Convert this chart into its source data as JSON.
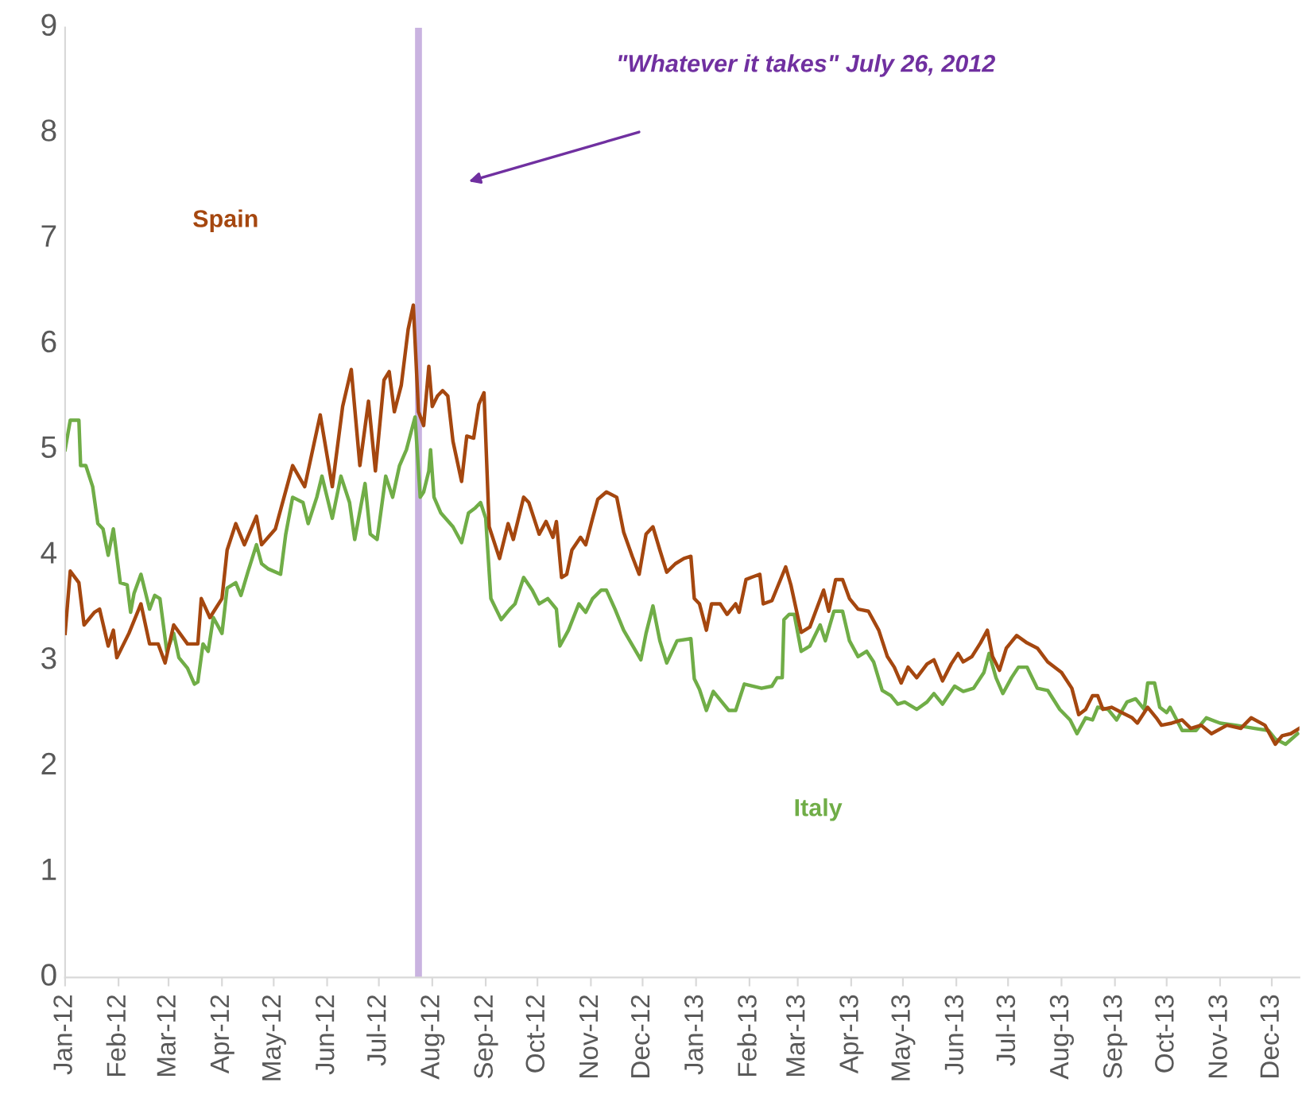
{
  "chart_data": {
    "type": "line",
    "series": [
      {
        "name": "Spain",
        "color": "#a5470f",
        "x": [
          "2012-01-01",
          "2012-01-04",
          "2012-01-09",
          "2012-01-12",
          "2012-01-18",
          "2012-01-21",
          "2012-01-26",
          "2012-01-29",
          "2012-01-31",
          "2012-02-07",
          "2012-02-14",
          "2012-02-19",
          "2012-02-24",
          "2012-02-28",
          "2012-03-04",
          "2012-03-12",
          "2012-03-18",
          "2012-03-20",
          "2012-03-25",
          "2012-04-01",
          "2012-04-04",
          "2012-04-09",
          "2012-04-14",
          "2012-04-21",
          "2012-04-24",
          "2012-05-02",
          "2012-05-07",
          "2012-05-12",
          "2012-05-19",
          "2012-05-28",
          "2012-06-04",
          "2012-06-10",
          "2012-06-15",
          "2012-06-20",
          "2012-06-25",
          "2012-06-29",
          "2012-07-04",
          "2012-07-07",
          "2012-07-10",
          "2012-07-14",
          "2012-07-18",
          "2012-07-21",
          "2012-07-24",
          "2012-07-27",
          "2012-07-30",
          "2012-08-01",
          "2012-08-04",
          "2012-08-07",
          "2012-08-10",
          "2012-08-13",
          "2012-08-18",
          "2012-08-21",
          "2012-08-25",
          "2012-08-28",
          "2012-08-31",
          "2012-09-03",
          "2012-09-09",
          "2012-09-14",
          "2012-09-17",
          "2012-09-23",
          "2012-09-26",
          "2012-09-29",
          "2012-10-02",
          "2012-10-06",
          "2012-10-10",
          "2012-10-12",
          "2012-10-15",
          "2012-10-18",
          "2012-10-21",
          "2012-10-26",
          "2012-10-29",
          "2012-11-02",
          "2012-11-05",
          "2012-11-10",
          "2012-11-16",
          "2012-11-20",
          "2012-11-25",
          "2012-11-29",
          "2012-12-03",
          "2012-12-07",
          "2012-12-11",
          "2012-12-15",
          "2012-12-20",
          "2012-12-25",
          "2012-12-29",
          "2012-12-31",
          "2013-01-03",
          "2013-01-07",
          "2013-01-10",
          "2013-01-15",
          "2013-01-19",
          "2013-01-24",
          "2013-01-26",
          "2013-01-30",
          "2013-02-02",
          "2013-02-07",
          "2013-02-09",
          "2013-02-14",
          "2013-02-22",
          "2013-02-25",
          "2013-03-03",
          "2013-03-08",
          "2013-03-16",
          "2013-03-19",
          "2013-03-23",
          "2013-03-27",
          "2013-03-31",
          "2013-04-05",
          "2013-04-11",
          "2013-04-17",
          "2013-04-22",
          "2013-04-26",
          "2013-04-30",
          "2013-05-04",
          "2013-05-09",
          "2013-05-15",
          "2013-05-19",
          "2013-05-24",
          "2013-05-29",
          "2013-06-02",
          "2013-06-05",
          "2013-06-10",
          "2013-06-15",
          "2013-06-19",
          "2013-06-22",
          "2013-06-26",
          "2013-06-30",
          "2013-07-06",
          "2013-07-12",
          "2013-07-18",
          "2013-07-24",
          "2013-08-01",
          "2013-08-07",
          "2013-08-11",
          "2013-08-15",
          "2013-08-19",
          "2013-08-22",
          "2013-08-25",
          "2013-08-30",
          "2013-09-05",
          "2013-09-11",
          "2013-09-14",
          "2013-09-20",
          "2013-09-25",
          "2013-09-28",
          "2013-10-04",
          "2013-10-10",
          "2013-10-15",
          "2013-10-21",
          "2013-10-27",
          "2013-11-05",
          "2013-11-13",
          "2013-11-19",
          "2013-11-27",
          "2013-12-03",
          "2013-12-07",
          "2013-12-12",
          "2013-12-17"
        ],
        "values": [
          3.26,
          3.85,
          3.74,
          3.34,
          3.46,
          3.49,
          3.14,
          3.29,
          3.03,
          3.26,
          3.54,
          3.16,
          3.16,
          2.98,
          3.34,
          3.16,
          3.16,
          3.59,
          3.41,
          3.59,
          4.05,
          4.3,
          4.1,
          4.37,
          4.1,
          4.25,
          4.55,
          4.85,
          4.65,
          5.33,
          4.65,
          5.41,
          5.76,
          4.85,
          5.46,
          4.8,
          5.66,
          5.74,
          5.36,
          5.61,
          6.14,
          6.37,
          5.36,
          5.23,
          5.79,
          5.41,
          5.51,
          5.56,
          5.51,
          5.08,
          4.7,
          5.13,
          5.11,
          5.43,
          5.54,
          4.27,
          3.97,
          4.3,
          4.15,
          4.55,
          4.5,
          4.35,
          4.2,
          4.32,
          4.17,
          4.32,
          3.79,
          3.82,
          4.05,
          4.17,
          4.1,
          4.35,
          4.53,
          4.6,
          4.55,
          4.22,
          3.99,
          3.82,
          4.2,
          4.27,
          4.05,
          3.84,
          3.92,
          3.97,
          3.99,
          3.59,
          3.54,
          3.29,
          3.54,
          3.54,
          3.44,
          3.54,
          3.46,
          3.77,
          3.79,
          3.82,
          3.54,
          3.57,
          3.89,
          3.72,
          3.27,
          3.32,
          3.67,
          3.47,
          3.77,
          3.77,
          3.59,
          3.49,
          3.47,
          3.29,
          3.04,
          2.94,
          2.79,
          2.94,
          2.84,
          2.97,
          3.01,
          2.81,
          2.97,
          3.07,
          2.99,
          3.04,
          3.17,
          3.29,
          3.04,
          2.91,
          3.12,
          3.24,
          3.17,
          3.12,
          2.99,
          2.89,
          2.74,
          2.49,
          2.54,
          2.67,
          2.67,
          2.54,
          2.56,
          2.51,
          2.46,
          2.41,
          2.56,
          2.46,
          2.39,
          2.41,
          2.44,
          2.36,
          2.39,
          2.31,
          2.39,
          2.36,
          2.46,
          2.39,
          2.21,
          2.29,
          2.31,
          2.36
        ]
      },
      {
        "name": "Italy",
        "color": "#70ad47",
        "x": [
          "2012-01-01",
          "2012-01-04",
          "2012-01-09",
          "2012-01-10",
          "2012-01-13",
          "2012-01-17",
          "2012-01-20",
          "2012-01-23",
          "2012-01-26",
          "2012-01-29",
          "2012-02-02",
          "2012-02-06",
          "2012-02-08",
          "2012-02-10",
          "2012-02-14",
          "2012-02-19",
          "2012-02-22",
          "2012-02-25",
          "2012-02-29",
          "2012-03-04",
          "2012-03-07",
          "2012-03-12",
          "2012-03-16",
          "2012-03-18",
          "2012-03-21",
          "2012-03-24",
          "2012-03-27",
          "2012-04-01",
          "2012-04-04",
          "2012-04-09",
          "2012-04-12",
          "2012-04-16",
          "2012-04-21",
          "2012-04-24",
          "2012-04-28",
          "2012-05-05",
          "2012-05-08",
          "2012-05-12",
          "2012-05-18",
          "2012-05-21",
          "2012-05-26",
          "2012-05-29",
          "2012-06-04",
          "2012-06-09",
          "2012-06-14",
          "2012-06-17",
          "2012-06-23",
          "2012-06-26",
          "2012-06-30",
          "2012-07-05",
          "2012-07-09",
          "2012-07-13",
          "2012-07-17",
          "2012-07-22",
          "2012-07-25",
          "2012-07-27",
          "2012-07-30",
          "2012-07-31",
          "2012-08-02",
          "2012-08-06",
          "2012-08-13",
          "2012-08-18",
          "2012-08-22",
          "2012-08-26",
          "2012-08-29",
          "2012-09-01",
          "2012-09-04",
          "2012-09-10",
          "2012-09-15",
          "2012-09-18",
          "2012-09-23",
          "2012-09-28",
          "2012-10-02",
          "2012-10-07",
          "2012-10-12",
          "2012-10-14",
          "2012-10-19",
          "2012-10-25",
          "2012-10-29",
          "2012-11-02",
          "2012-11-07",
          "2012-11-10",
          "2012-11-15",
          "2012-11-20",
          "2012-11-30",
          "2012-12-03",
          "2012-12-07",
          "2012-12-11",
          "2012-12-15",
          "2012-12-21",
          "2012-12-29",
          "2012-12-31",
          "2013-01-03",
          "2013-01-07",
          "2013-01-11",
          "2013-01-16",
          "2013-01-20",
          "2013-01-24",
          "2013-01-29",
          "2013-02-08",
          "2013-02-14",
          "2013-02-17",
          "2013-02-20",
          "2013-02-21",
          "2013-02-24",
          "2013-02-27",
          "2013-03-03",
          "2013-03-08",
          "2013-03-14",
          "2013-03-17",
          "2013-03-22",
          "2013-03-27",
          "2013-03-31",
          "2013-04-05",
          "2013-04-10",
          "2013-04-14",
          "2013-04-19",
          "2013-04-24",
          "2013-04-28",
          "2013-05-02",
          "2013-05-09",
          "2013-05-15",
          "2013-05-19",
          "2013-05-24",
          "2013-05-31",
          "2013-06-05",
          "2013-06-11",
          "2013-06-17",
          "2013-06-20",
          "2013-06-24",
          "2013-06-28",
          "2013-07-03",
          "2013-07-07",
          "2013-07-12",
          "2013-07-18",
          "2013-07-24",
          "2013-07-31",
          "2013-08-06",
          "2013-08-10",
          "2013-08-15",
          "2013-08-19",
          "2013-08-22",
          "2013-08-28",
          "2013-09-02",
          "2013-09-08",
          "2013-09-13",
          "2013-09-18",
          "2013-09-20",
          "2013-09-24",
          "2013-09-27",
          "2013-10-01",
          "2013-10-03",
          "2013-10-10",
          "2013-10-18",
          "2013-10-24",
          "2013-11-01",
          "2013-11-10",
          "2013-11-21",
          "2013-11-29",
          "2013-12-03",
          "2013-12-09",
          "2013-12-16"
        ],
        "values": [
          5.0,
          5.28,
          5.28,
          4.85,
          4.85,
          4.65,
          4.3,
          4.25,
          4.0,
          4.25,
          3.74,
          3.72,
          3.46,
          3.64,
          3.82,
          3.49,
          3.62,
          3.59,
          3.09,
          3.26,
          3.03,
          2.93,
          2.78,
          2.8,
          3.16,
          3.09,
          3.41,
          3.26,
          3.69,
          3.74,
          3.62,
          3.84,
          4.1,
          3.92,
          3.87,
          3.82,
          4.2,
          4.55,
          4.5,
          4.3,
          4.55,
          4.75,
          4.35,
          4.75,
          4.5,
          4.15,
          4.68,
          4.2,
          4.15,
          4.75,
          4.55,
          4.85,
          5.0,
          5.31,
          4.55,
          4.6,
          4.8,
          5.0,
          4.55,
          4.4,
          4.27,
          4.12,
          4.4,
          4.45,
          4.5,
          4.35,
          3.59,
          3.39,
          3.49,
          3.54,
          3.79,
          3.67,
          3.54,
          3.59,
          3.49,
          3.14,
          3.29,
          3.54,
          3.46,
          3.59,
          3.67,
          3.67,
          3.49,
          3.29,
          3.01,
          3.26,
          3.52,
          3.19,
          2.98,
          3.19,
          3.21,
          2.83,
          2.73,
          2.53,
          2.71,
          2.61,
          2.53,
          2.53,
          2.78,
          2.74,
          2.76,
          2.84,
          2.84,
          3.39,
          3.44,
          3.44,
          3.09,
          3.14,
          3.34,
          3.19,
          3.47,
          3.47,
          3.19,
          3.04,
          3.09,
          2.99,
          2.72,
          2.67,
          2.59,
          2.61,
          2.54,
          2.61,
          2.69,
          2.59,
          2.76,
          2.71,
          2.74,
          2.89,
          3.07,
          2.84,
          2.69,
          2.84,
          2.94,
          2.94,
          2.74,
          2.72,
          2.54,
          2.44,
          2.31,
          2.46,
          2.44,
          2.56,
          2.54,
          2.44,
          2.61,
          2.64,
          2.54,
          2.79,
          2.79,
          2.56,
          2.51,
          2.56,
          2.34,
          2.34,
          2.46,
          2.41,
          2.39,
          2.36,
          2.34,
          2.26,
          2.21,
          2.31
        ]
      }
    ],
    "xlim": [
      "2012-01-01",
      "2013-12-17"
    ],
    "xticks": [
      {
        "value": "2012-01-01",
        "label": "Jan-12"
      },
      {
        "value": "2012-02-01",
        "label": "Feb-12"
      },
      {
        "value": "2012-03-01",
        "label": "Mar-12"
      },
      {
        "value": "2012-04-01",
        "label": "Apr-12"
      },
      {
        "value": "2012-05-01",
        "label": "May-12"
      },
      {
        "value": "2012-06-01",
        "label": "Jun-12"
      },
      {
        "value": "2012-07-01",
        "label": "Jul-12"
      },
      {
        "value": "2012-08-01",
        "label": "Aug-12"
      },
      {
        "value": "2012-09-01",
        "label": "Sep-12"
      },
      {
        "value": "2012-10-01",
        "label": "Oct-12"
      },
      {
        "value": "2012-11-01",
        "label": "Nov-12"
      },
      {
        "value": "2012-12-01",
        "label": "Dec-12"
      },
      {
        "value": "2013-01-01",
        "label": "Jan-13"
      },
      {
        "value": "2013-02-01",
        "label": "Feb-13"
      },
      {
        "value": "2013-03-01",
        "label": "Mar-13"
      },
      {
        "value": "2013-04-01",
        "label": "Apr-13"
      },
      {
        "value": "2013-05-01",
        "label": "May-13"
      },
      {
        "value": "2013-06-01",
        "label": "Jun-13"
      },
      {
        "value": "2013-07-01",
        "label": "Jul-13"
      },
      {
        "value": "2013-08-01",
        "label": "Aug-13"
      },
      {
        "value": "2013-09-01",
        "label": "Sep-13"
      },
      {
        "value": "2013-10-01",
        "label": "Oct-13"
      },
      {
        "value": "2013-11-01",
        "label": "Nov-13"
      },
      {
        "value": "2013-12-01",
        "label": "Dec-13"
      }
    ],
    "ylim": [
      0,
      9
    ],
    "yticks": [
      0,
      1,
      2,
      3,
      4,
      5,
      6,
      7,
      8,
      9
    ],
    "bands": [
      {
        "axis": "x",
        "from": "2012-07-22",
        "to": "2012-07-26",
        "color": "#c9b3e0"
      }
    ],
    "annotations": [
      "\"Whatever it takes\" July 26, 2012"
    ],
    "grid": false,
    "legend": false,
    "marker": "none",
    "line_style": "solid"
  }
}
